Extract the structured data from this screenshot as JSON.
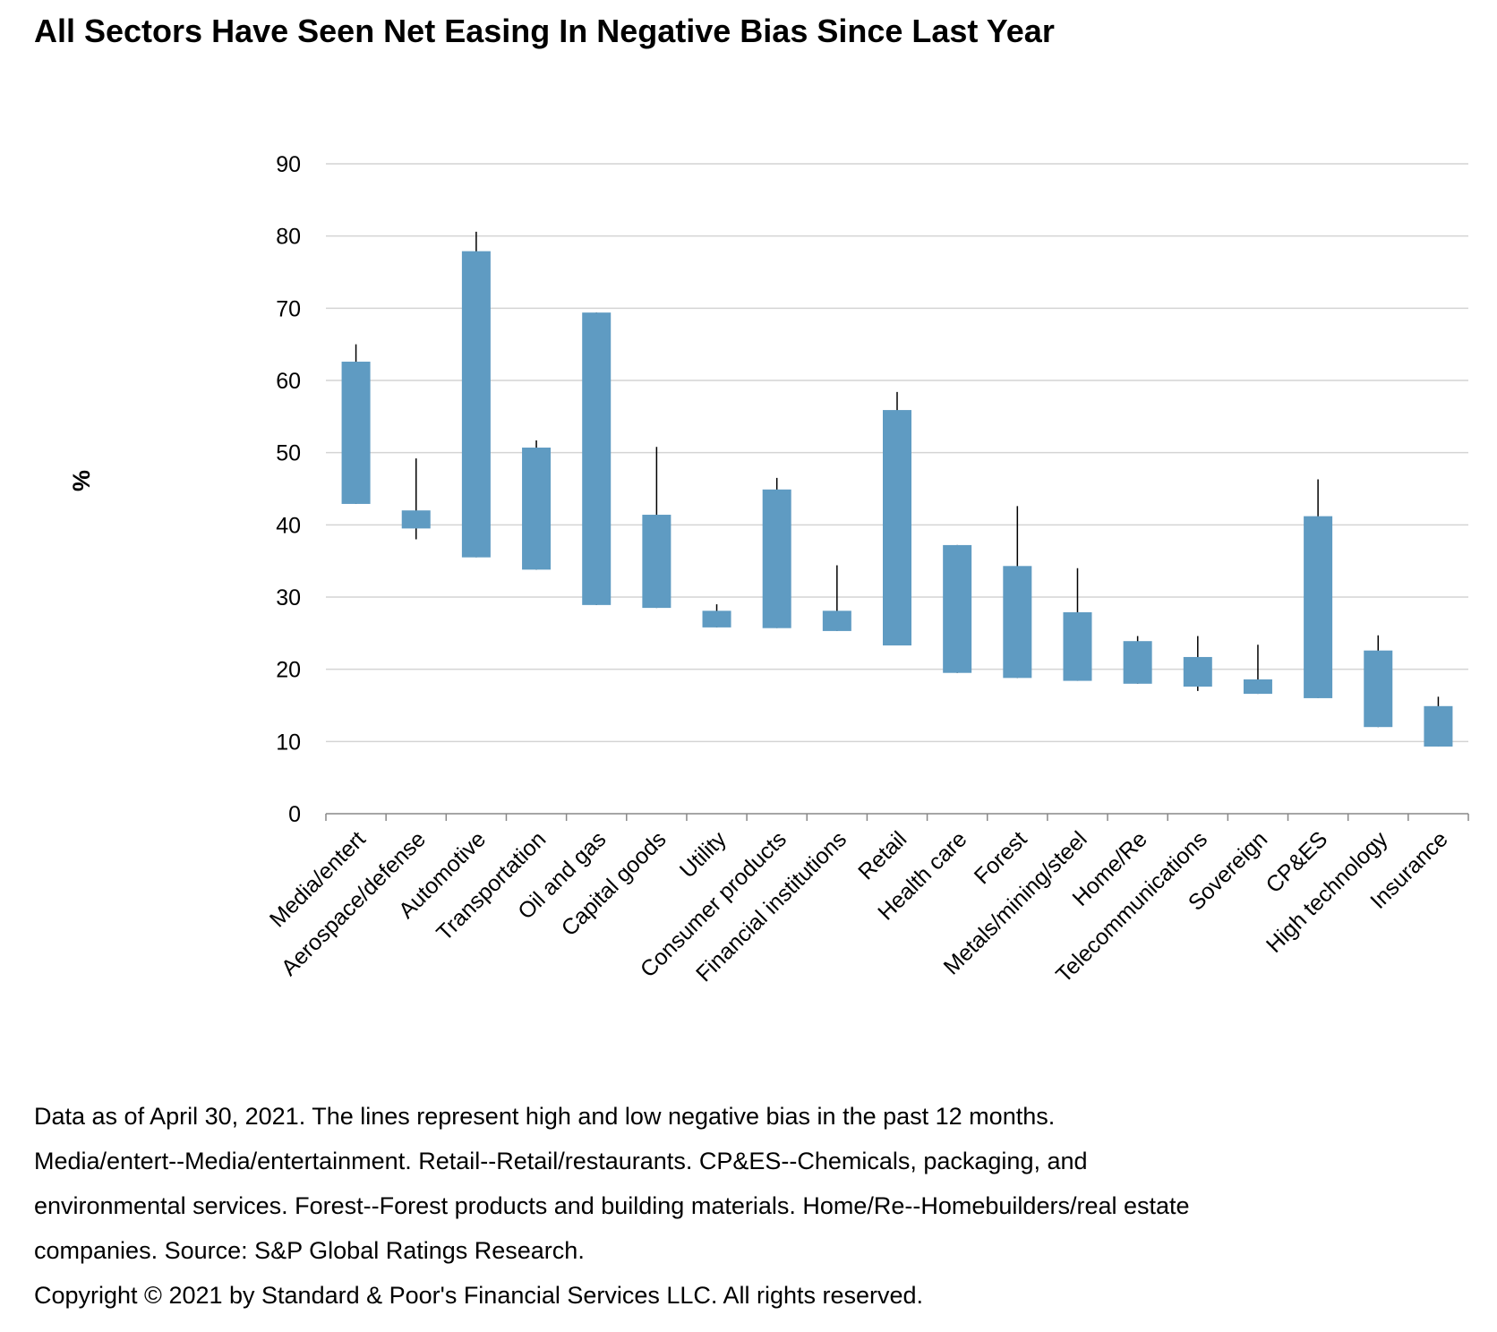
{
  "chart_data": {
    "type": "floating-bar",
    "title": "All Sectors Have Seen Net Easing In Negative Bias Since Last Year",
    "y_label": "%",
    "categories": [
      "Media/entert",
      "Aerospace/defense",
      "Automotive",
      "Transportation",
      "Oil and gas",
      "Capital goods",
      "Utility",
      "Consumer products",
      "Financial institutions",
      "Retail",
      "Health care",
      "Forest",
      "Metals/mining/steel",
      "Home/Re",
      "Telecommunications",
      "Sovereign",
      "CP&ES",
      "High technology",
      "Insurance"
    ],
    "bar_low": [
      42.9,
      39.5,
      35.5,
      33.8,
      28.9,
      28.5,
      25.8,
      25.7,
      25.3,
      23.3,
      19.5,
      18.8,
      18.4,
      18.0,
      17.6,
      16.6,
      16.0,
      12.0,
      9.3
    ],
    "bar_high": [
      62.6,
      42.0,
      77.9,
      50.7,
      69.4,
      41.4,
      28.1,
      44.9,
      28.1,
      55.9,
      37.2,
      34.3,
      27.9,
      23.9,
      21.7,
      18.6,
      41.2,
      22.6,
      14.9
    ],
    "whisker_low": [
      42.9,
      38.0,
      35.5,
      33.8,
      28.9,
      28.5,
      25.8,
      25.7,
      25.3,
      23.3,
      19.5,
      18.8,
      18.4,
      18.0,
      17.0,
      16.6,
      16.0,
      12.0,
      9.3
    ],
    "whisker_high": [
      65.0,
      49.2,
      80.6,
      51.7,
      69.4,
      50.8,
      29.0,
      46.5,
      34.4,
      58.4,
      37.2,
      42.6,
      34.0,
      24.6,
      24.6,
      23.4,
      46.3,
      24.7,
      16.2
    ],
    "color": "#5f9bc2",
    "ylim": [
      0,
      90
    ],
    "yticks": [
      0,
      10,
      20,
      30,
      40,
      50,
      60,
      70,
      80,
      90
    ],
    "grid": true,
    "notes": [
      "Data as of April 30, 2021. The lines represent high and low negative bias in the past 12 months.",
      "Media/entert--Media/entertainment. Retail--Retail/restaurants. CP&ES--Chemicals, packaging, and",
      "environmental services. Forest--Forest products and building materials. Home/Re--Homebuilders/real estate",
      "companies. Source: S&P Global Ratings Research.",
      "Copyright © 2021 by Standard & Poor's Financial Services LLC. All rights reserved."
    ]
  }
}
